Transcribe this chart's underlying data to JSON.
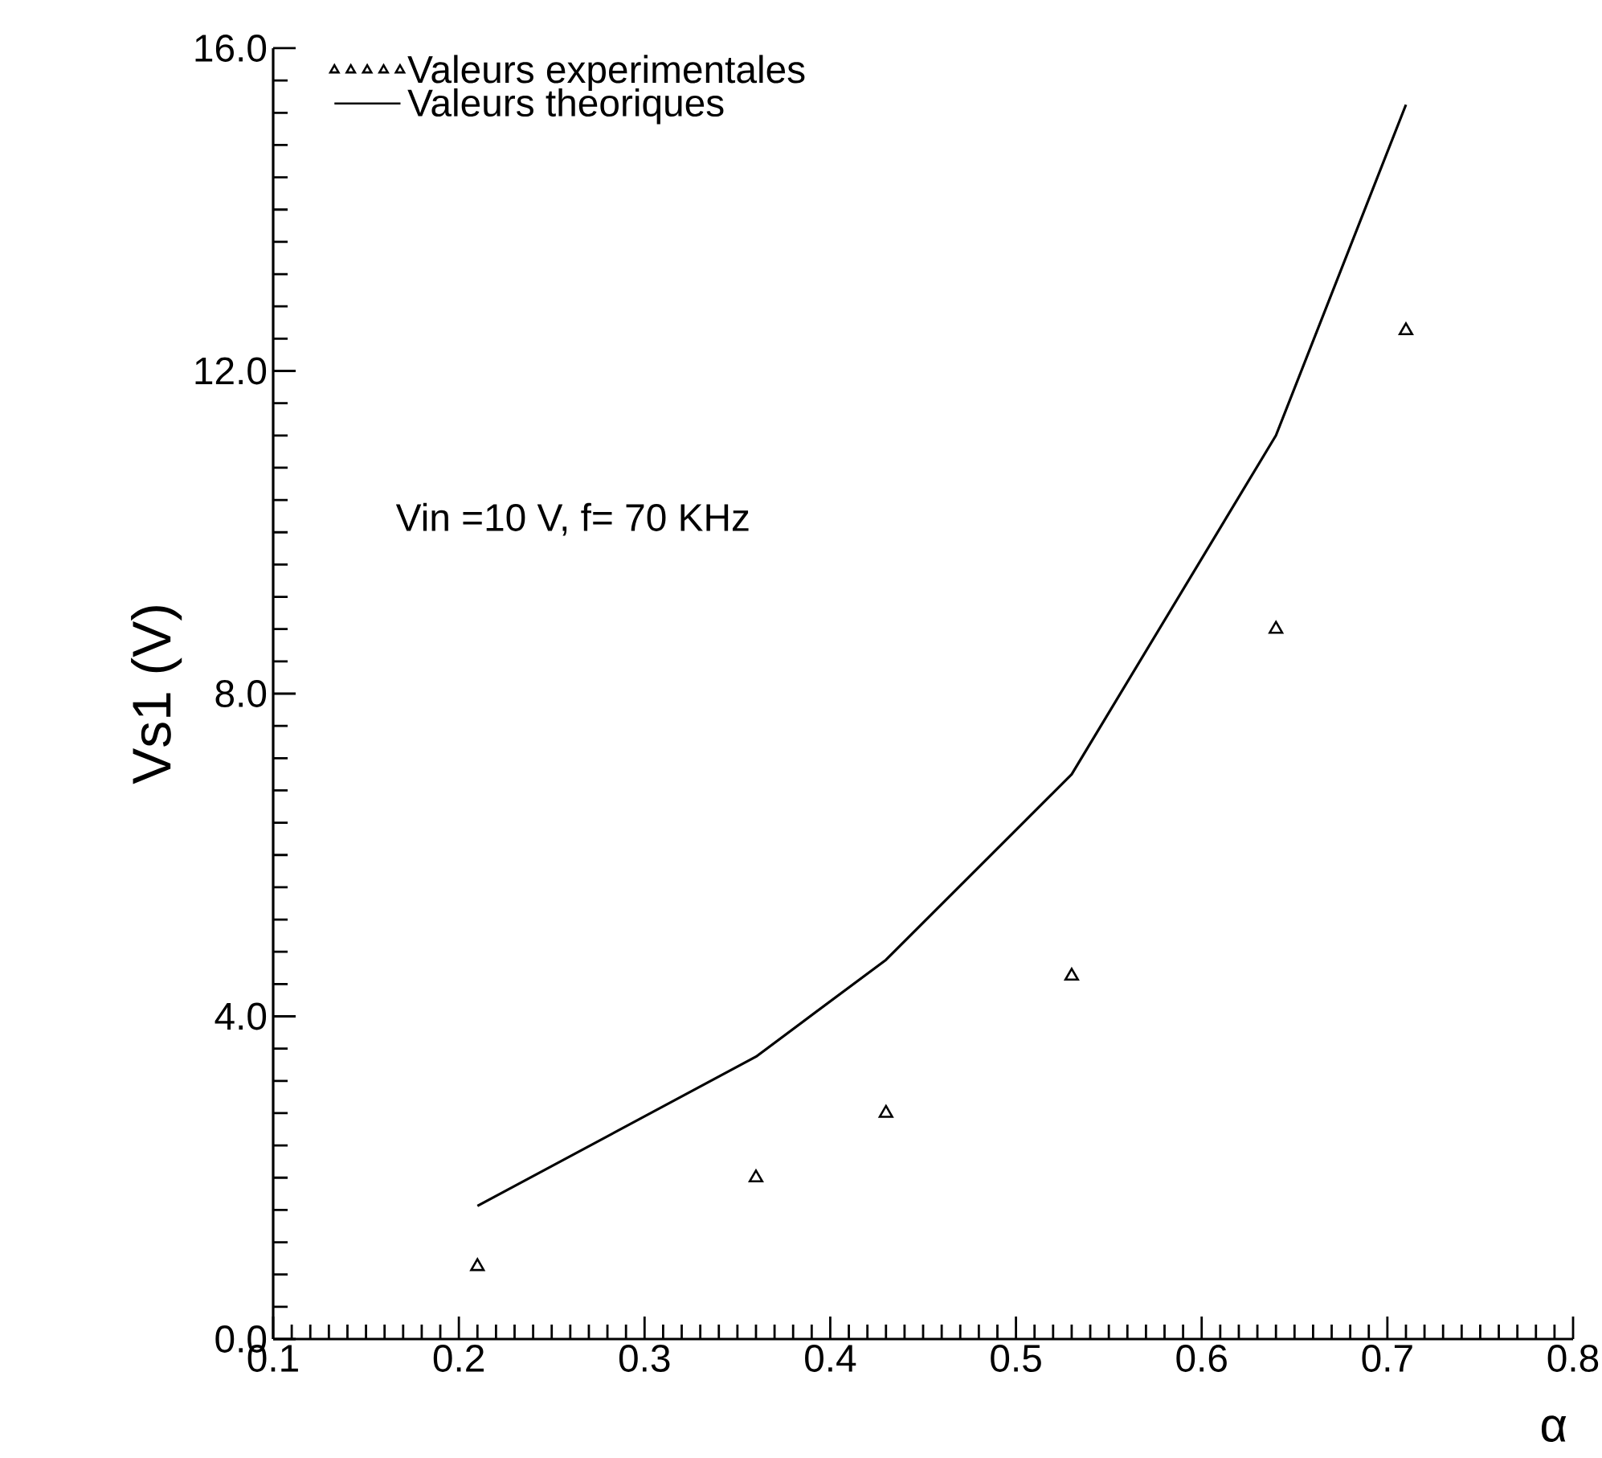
{
  "chart_data": {
    "type": "line",
    "xlabel": "α",
    "ylabel": "Vs1 (V)",
    "annotations": [
      "Vin =10 V, f= 70 KHz"
    ],
    "xlim": [
      0.1,
      0.8
    ],
    "xticks": [
      0.1,
      0.2,
      0.3,
      0.4,
      0.5,
      0.6,
      0.7,
      0.8
    ],
    "ylim": [
      0,
      16
    ],
    "yticks": [
      {
        "value": 0,
        "label": "0.0"
      },
      {
        "value": 4,
        "label": "4.0"
      },
      {
        "value": 8,
        "label": "8.0"
      },
      {
        "value": 12,
        "label": "12.0"
      },
      {
        "value": 16,
        "label": "16.0"
      }
    ],
    "grid": false,
    "legend": "top left",
    "series": [
      {
        "name": "Valeurs experimentales",
        "type": "scatter",
        "marker": "triangle",
        "color": "#000000",
        "x": [
          0.21,
          0.36,
          0.43,
          0.53,
          0.64,
          0.71
        ],
        "values": [
          0.9,
          2.0,
          2.8,
          4.5,
          8.8,
          12.5
        ]
      },
      {
        "name": "Valeurs theoriques",
        "marker": "none",
        "line_style": "solid",
        "color": "#000000",
        "x": [
          0.21,
          0.36,
          0.43,
          0.53,
          0.64,
          0.71
        ],
        "values": [
          1.65,
          3.5,
          4.7,
          7.0,
          11.2,
          15.3
        ]
      }
    ]
  }
}
